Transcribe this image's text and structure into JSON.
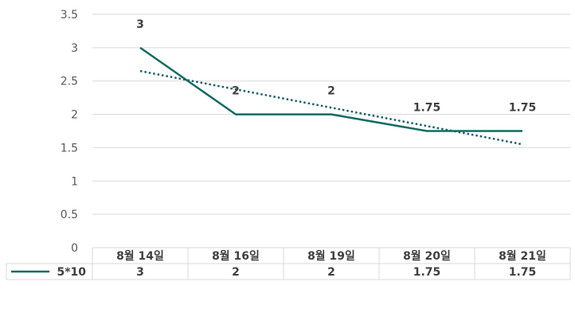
{
  "chart_data": {
    "type": "line",
    "categories": [
      "8월 14일",
      "8월 16일",
      "8월 19일",
      "8월 20일",
      "8월 21일"
    ],
    "series": [
      {
        "name": "5*10",
        "values": [
          3,
          2,
          2,
          1.75,
          1.75
        ],
        "data_labels": [
          "3",
          "2",
          "2",
          "1.75",
          "1.75"
        ],
        "table_values": [
          "3",
          "2",
          "2",
          "1.75",
          "1.75"
        ]
      }
    ],
    "y_ticks": [
      "0",
      "0.5",
      "1",
      "1.5",
      "2",
      "2.5",
      "3",
      "3.5"
    ],
    "ylim": [
      0,
      3.5
    ],
    "trendline": {
      "type": "linear",
      "style": "dotted"
    },
    "gridlines": true,
    "data_table": true,
    "legend": "in data table",
    "colors": {
      "series": "#116b62",
      "trendline": "#1b5f6c",
      "grid": "#d9d9d9",
      "text": "#595959",
      "label": "#404040"
    }
  }
}
